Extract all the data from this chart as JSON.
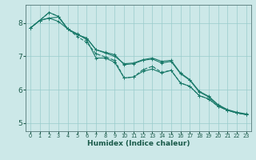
{
  "xlabel": "Humidex (Indice chaleur)",
  "bg_color": "#cce8e8",
  "grid_color": "#99cccc",
  "line_color": "#1a7a6a",
  "xlim": [
    -0.5,
    23.5
  ],
  "ylim": [
    4.75,
    8.55
  ],
  "yticks": [
    5,
    6,
    7,
    8
  ],
  "xticks": [
    0,
    1,
    2,
    3,
    4,
    5,
    6,
    7,
    8,
    9,
    10,
    11,
    12,
    13,
    14,
    15,
    16,
    17,
    18,
    19,
    20,
    21,
    22,
    23
  ],
  "series": [
    [
      7.85,
      8.08,
      8.32,
      8.2,
      7.82,
      7.68,
      7.5,
      6.95,
      6.95,
      6.82,
      6.35,
      6.38,
      6.55,
      6.62,
      6.5,
      6.58,
      6.2,
      6.1,
      5.82,
      5.72,
      5.5,
      5.38,
      5.3,
      5.25
    ],
    [
      7.85,
      8.08,
      8.32,
      8.2,
      7.82,
      7.6,
      7.42,
      7.08,
      6.98,
      6.88,
      6.35,
      6.38,
      6.6,
      6.7,
      6.52,
      6.58,
      6.2,
      6.1,
      5.82,
      5.72,
      5.5,
      5.38,
      5.3,
      5.25
    ],
    [
      7.85,
      8.08,
      8.15,
      8.18,
      7.82,
      7.65,
      7.55,
      7.2,
      7.1,
      7.0,
      6.78,
      6.8,
      6.9,
      6.95,
      6.85,
      6.88,
      6.5,
      6.3,
      5.95,
      5.8,
      5.55,
      5.4,
      5.32,
      5.27
    ],
    [
      7.85,
      8.08,
      8.15,
      8.05,
      7.82,
      7.65,
      7.55,
      7.2,
      7.12,
      7.05,
      6.75,
      6.78,
      6.88,
      6.92,
      6.8,
      6.85,
      6.48,
      6.28,
      5.93,
      5.78,
      5.53,
      5.38,
      5.3,
      5.25
    ]
  ],
  "xlabel_fontsize": 6.5,
  "ytick_fontsize": 6.5,
  "xtick_fontsize": 4.8
}
